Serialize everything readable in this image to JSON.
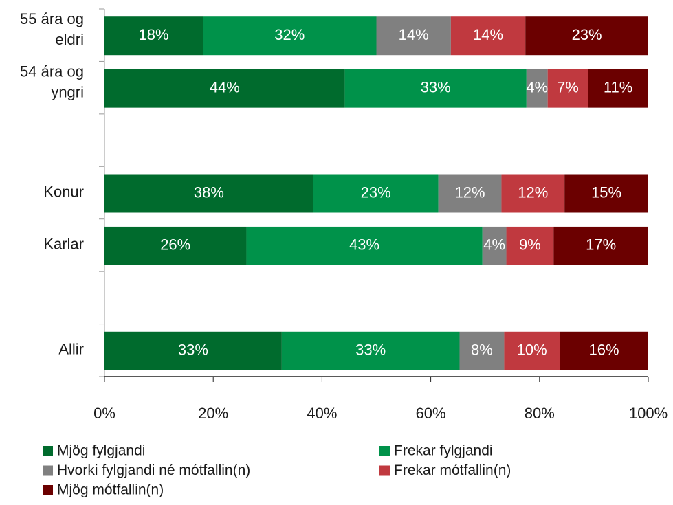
{
  "chart_data": {
    "type": "stacked_barh",
    "categories": [
      "55 ára og eldri",
      "54 ára og yngri",
      null,
      "Konur",
      "Karlar",
      null,
      "Allir"
    ],
    "series": [
      {
        "name": "Mjög fylgjandi",
        "color": "#006b2d",
        "values": [
          18.1,
          44.2,
          null,
          38.4,
          26.1,
          null,
          32.6
        ],
        "value_labels": [
          "18%",
          "44%",
          null,
          "38%",
          "26%",
          null,
          "33%"
        ]
      },
      {
        "name": "Frekar fylgjandi",
        "color": "#00924a",
        "values": [
          31.9,
          33.4,
          null,
          23.0,
          43.4,
          null,
          32.7
        ],
        "value_labels": [
          "32%",
          "33%",
          null,
          "23%",
          "43%",
          null,
          "33%"
        ]
      },
      {
        "name": "Hvorki fylgjandi né mótfallin(n)",
        "color": "#808080",
        "values": [
          13.7,
          3.9,
          null,
          11.6,
          4.4,
          null,
          8.2
        ],
        "value_labels": [
          "14%",
          "4%",
          null,
          "12%",
          "4%",
          null,
          "8%"
        ]
      },
      {
        "name": "Frekar mótfallin(n)",
        "color": "#c0393f",
        "values": [
          13.7,
          7.4,
          null,
          11.6,
          8.7,
          null,
          10.2
        ],
        "value_labels": [
          "14%",
          "7%",
          null,
          "12%",
          "9%",
          null,
          "10%"
        ]
      },
      {
        "name": "Mjög mótfallin(n)",
        "color": "#6b0000",
        "values": [
          22.6,
          11.1,
          null,
          15.4,
          17.4,
          null,
          16.3
        ],
        "value_labels": [
          "23%",
          "11%",
          null,
          "15%",
          "17%",
          null,
          "16%"
        ]
      }
    ],
    "xlim": [
      0,
      100
    ],
    "xticks": [
      {
        "value": 0,
        "label": "0%"
      },
      {
        "value": 20,
        "label": "20%"
      },
      {
        "value": 40,
        "label": "40%"
      },
      {
        "value": 60,
        "label": "60%"
      },
      {
        "value": 80,
        "label": "80%"
      },
      {
        "value": 100,
        "label": "100%"
      }
    ],
    "legend": "bottom"
  }
}
